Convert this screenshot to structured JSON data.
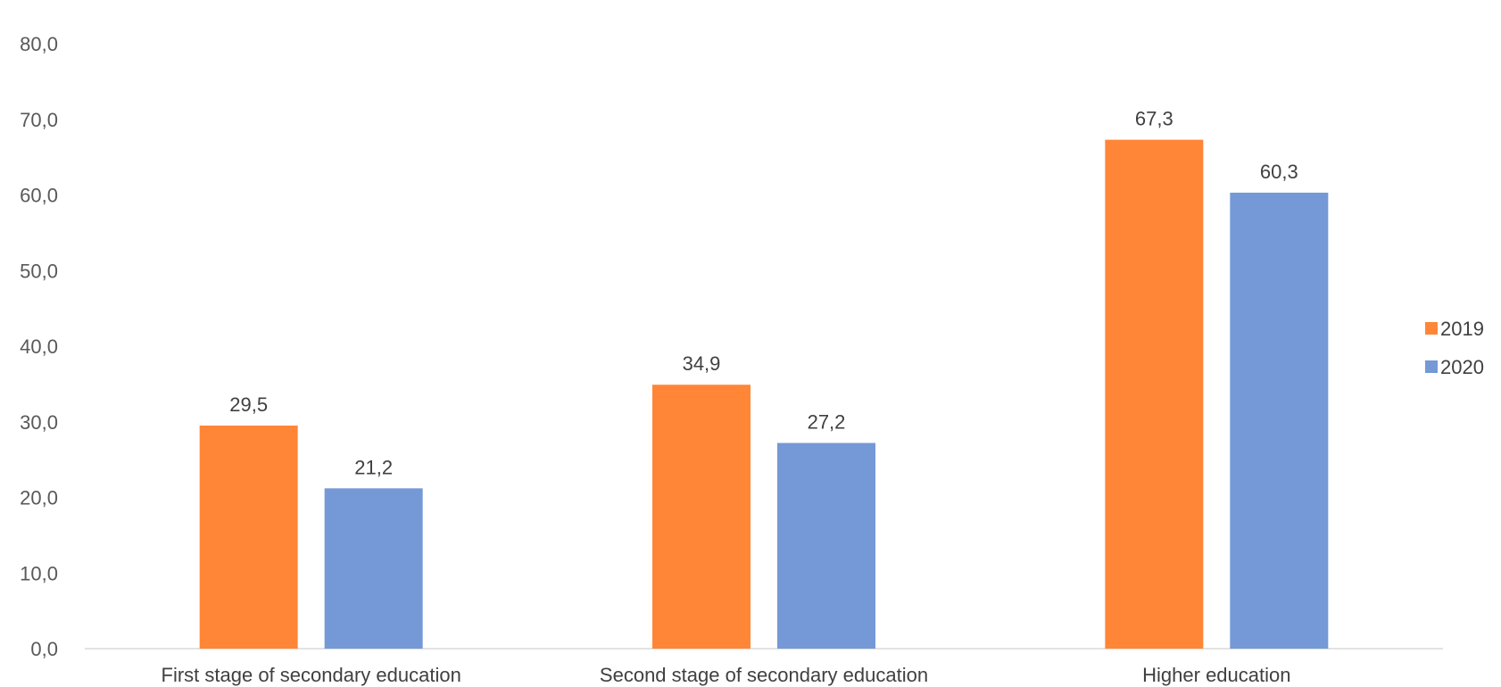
{
  "chart_data": {
    "type": "bar",
    "categories": [
      "First stage of secondary education",
      "Second stage of secondary education",
      "Higher education"
    ],
    "series": [
      {
        "name": "2019",
        "values": [
          29.5,
          34.9,
          67.3
        ],
        "labels": [
          "29,5",
          "34,9",
          "67,3"
        ],
        "color": "#FF8637"
      },
      {
        "name": "2020",
        "values": [
          21.2,
          27.2,
          60.3
        ],
        "labels": [
          "21,2",
          "27,2",
          "60,3"
        ],
        "color": "#7499D6"
      }
    ],
    "yticks": [
      "0,0",
      "10,0",
      "20,0",
      "30,0",
      "40,0",
      "50,0",
      "60,0",
      "70,0",
      "80,0"
    ],
    "ylim": [
      0,
      80
    ],
    "legend_position": "right",
    "grid": false,
    "title": "",
    "xlabel": "",
    "ylabel": ""
  }
}
